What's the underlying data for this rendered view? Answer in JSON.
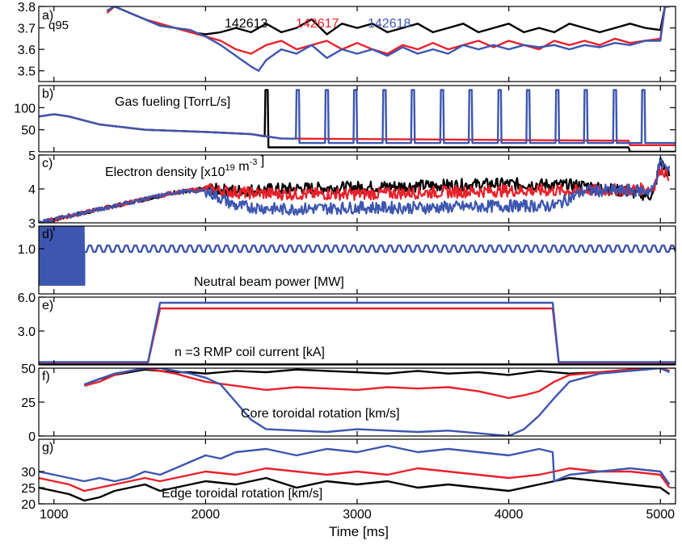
{
  "xlabel": "Time [ms]",
  "xticks": [
    1000,
    2000,
    3000,
    4000,
    5000
  ],
  "xlim": [
    900,
    5100
  ],
  "colors": {
    "142613": "#000000",
    "142617": "#e8212b",
    "142618": "#3d56b0"
  },
  "shots": [
    "142613",
    "142617",
    "142618"
  ],
  "chart_data": [
    {
      "type": "line",
      "panel": "a)",
      "label": "q95",
      "ylim": [
        3.45,
        3.8
      ],
      "yticks": [
        "3.5",
        "3.6",
        "3.7",
        "3.8"
      ],
      "legend": true,
      "series": [
        {
          "name": "142613",
          "x": [
            1350,
            1400,
            1500,
            1600,
            1700,
            1800,
            1900,
            2000,
            2100,
            2200,
            2300,
            2400,
            2500,
            2600,
            2700,
            2800,
            2900,
            3000,
            3100,
            3200,
            3300,
            3400,
            3500,
            3600,
            3700,
            3800,
            3900,
            4000,
            4100,
            4200,
            4300,
            4400,
            4500,
            4600,
            4700,
            4800,
            4900,
            5000,
            5030,
            5060
          ],
          "y": [
            3.78,
            3.8,
            3.77,
            3.74,
            3.71,
            3.7,
            3.68,
            3.67,
            3.68,
            3.7,
            3.68,
            3.72,
            3.68,
            3.7,
            3.74,
            3.67,
            3.72,
            3.7,
            3.72,
            3.68,
            3.7,
            3.72,
            3.68,
            3.7,
            3.72,
            3.68,
            3.7,
            3.72,
            3.68,
            3.7,
            3.68,
            3.72,
            3.7,
            3.68,
            3.7,
            3.72,
            3.7,
            3.69,
            3.8,
            3.8
          ]
        },
        {
          "name": "142617",
          "x": [
            1350,
            1400,
            1500,
            1600,
            1700,
            1800,
            1900,
            2000,
            2100,
            2200,
            2300,
            2400,
            2500,
            2600,
            2700,
            2800,
            2900,
            3000,
            3100,
            3200,
            3300,
            3400,
            3500,
            3600,
            3700,
            3800,
            3900,
            4000,
            4100,
            4200,
            4300,
            4400,
            4500,
            4600,
            4700,
            4800,
            4900,
            5000,
            5030,
            5060
          ],
          "y": [
            3.77,
            3.8,
            3.77,
            3.74,
            3.72,
            3.7,
            3.68,
            3.66,
            3.64,
            3.6,
            3.58,
            3.62,
            3.64,
            3.6,
            3.62,
            3.64,
            3.6,
            3.63,
            3.6,
            3.58,
            3.62,
            3.6,
            3.63,
            3.6,
            3.62,
            3.64,
            3.61,
            3.64,
            3.62,
            3.6,
            3.64,
            3.62,
            3.64,
            3.62,
            3.65,
            3.63,
            3.64,
            3.65,
            3.8,
            3.8
          ]
        },
        {
          "name": "142618",
          "x": [
            1350,
            1400,
            1500,
            1600,
            1700,
            1800,
            1900,
            2000,
            2100,
            2200,
            2300,
            2350,
            2400,
            2500,
            2600,
            2700,
            2800,
            2900,
            3000,
            3100,
            3200,
            3300,
            3400,
            3500,
            3600,
            3700,
            3800,
            3900,
            4000,
            4100,
            4200,
            4300,
            4400,
            4500,
            4600,
            4700,
            4800,
            4900,
            5000,
            5030,
            5060
          ],
          "y": [
            3.78,
            3.8,
            3.77,
            3.74,
            3.71,
            3.7,
            3.69,
            3.66,
            3.62,
            3.57,
            3.52,
            3.5,
            3.55,
            3.6,
            3.58,
            3.62,
            3.56,
            3.6,
            3.58,
            3.6,
            3.57,
            3.61,
            3.58,
            3.6,
            3.58,
            3.62,
            3.6,
            3.62,
            3.6,
            3.62,
            3.61,
            3.62,
            3.6,
            3.62,
            3.61,
            3.63,
            3.62,
            3.64,
            3.64,
            3.8,
            3.8
          ]
        }
      ]
    },
    {
      "type": "line",
      "panel": "b)",
      "label": "Gas fueling [TorrL/s]",
      "ylim": [
        0,
        150
      ],
      "yticks": [
        "50",
        "100"
      ],
      "series": [
        {
          "name": "142613",
          "x": [
            900,
            1000,
            1100,
            1300,
            1600,
            2000,
            2300,
            2390,
            2395,
            2410,
            2415,
            2600,
            4700,
            4790,
            4800,
            5100
          ],
          "y": [
            80,
            85,
            80,
            62,
            50,
            45,
            40,
            35,
            140,
            140,
            10,
            10,
            10,
            10,
            0,
            0
          ]
        },
        {
          "name": "142617",
          "x": [
            900,
            1000,
            1100,
            1300,
            1600,
            2000,
            2300,
            2500,
            4790,
            4800,
            5100
          ],
          "y": [
            80,
            85,
            80,
            62,
            50,
            45,
            40,
            30,
            25,
            15,
            15
          ]
        },
        {
          "name": "142618",
          "x": [
            900,
            1000,
            1100,
            1300,
            1600,
            2000,
            2300,
            2500,
            5100
          ],
          "y": [
            80,
            85,
            80,
            62,
            50,
            45,
            40,
            30,
            25
          ],
          "pulses": {
            "start": 2600,
            "period": 190,
            "count": 13,
            "height": 140,
            "base": 20
          }
        }
      ]
    },
    {
      "type": "line",
      "panel": "c)",
      "label": "Electron density [x10^19 m^-3 ]",
      "ylim": [
        3,
        5
      ],
      "yticks": [
        "3",
        "4",
        "5"
      ],
      "series": [
        {
          "name": "142613",
          "x": [
            900,
            1200,
            1500,
            1800,
            2000,
            2200,
            2500,
            3000,
            3500,
            4000,
            4500,
            4950,
            5000,
            5060
          ],
          "y": [
            3.0,
            3.3,
            3.6,
            3.9,
            4.0,
            3.95,
            4.0,
            4.05,
            4.1,
            4.15,
            4.1,
            3.8,
            4.8,
            4.4
          ]
        },
        {
          "name": "142617",
          "x": [
            900,
            1200,
            1500,
            1800,
            2000,
            2200,
            2500,
            3000,
            3500,
            4000,
            4500,
            4950,
            5000,
            5060
          ],
          "y": [
            3.0,
            3.3,
            3.6,
            3.9,
            4.0,
            3.9,
            3.85,
            3.85,
            3.9,
            3.95,
            3.95,
            4.0,
            4.6,
            4.4
          ]
        },
        {
          "name": "142618",
          "x": [
            900,
            1200,
            1500,
            1800,
            2000,
            2200,
            2500,
            3000,
            3500,
            4000,
            4300,
            4500,
            4950,
            5000,
            5060
          ],
          "y": [
            3.0,
            3.3,
            3.6,
            3.9,
            3.95,
            3.5,
            3.4,
            3.45,
            3.45,
            3.5,
            3.5,
            3.95,
            3.95,
            4.8,
            4.5
          ]
        }
      ]
    },
    {
      "type": "line",
      "panel": "d)",
      "label": "Neutral beam power [MW]",
      "ylim": [
        0,
        1.5
      ],
      "yticks": [
        "1.0"
      ],
      "series": [
        {
          "name": "142618",
          "x": [
            900,
            1200,
            5100
          ],
          "y": [
            1.0,
            1.0,
            1.0
          ],
          "burst": {
            "start": 900,
            "end": 1200,
            "low": 0.2,
            "high": 1.5
          },
          "osc": {
            "start": 1200,
            "end": 5100,
            "low": 0.93,
            "high": 1.07,
            "period": 60
          }
        }
      ]
    },
    {
      "type": "line",
      "panel": "e)",
      "label": "n =3 RMP coil current [kA]",
      "ylim": [
        0,
        6
      ],
      "yticks": [
        "3.0",
        "6.0"
      ],
      "series": [
        {
          "name": "142613",
          "x": [
            900,
            5100
          ],
          "y": [
            0.05,
            0.05
          ]
        },
        {
          "name": "142617",
          "x": [
            900,
            1620,
            1700,
            4290,
            4330,
            5100
          ],
          "y": [
            0.2,
            0.2,
            5.0,
            5.0,
            0.2,
            0.2
          ]
        },
        {
          "name": "142618",
          "x": [
            900,
            1620,
            1700,
            4290,
            4330,
            5100
          ],
          "y": [
            0.25,
            0.25,
            5.5,
            5.5,
            0.25,
            0.25
          ]
        }
      ]
    },
    {
      "type": "line",
      "panel": "f)",
      "label": "Core toroidal rotation [km/s]",
      "ylim": [
        0,
        50
      ],
      "yticks": [
        "0",
        "25",
        "50"
      ],
      "series": [
        {
          "name": "142613",
          "x": [
            1200,
            1300,
            1400,
            1500,
            1600,
            1700,
            1800,
            1900,
            2000,
            2200,
            2400,
            2600,
            2800,
            3000,
            3200,
            3400,
            3600,
            3800,
            4000,
            4200,
            4400,
            4600,
            4800,
            5000,
            5060
          ],
          "y": [
            38,
            42,
            45,
            47,
            49,
            48,
            47,
            47,
            46,
            48,
            47,
            49,
            48,
            47,
            46,
            48,
            46,
            47,
            45,
            48,
            46,
            47,
            49,
            50,
            48
          ]
        },
        {
          "name": "142617",
          "x": [
            1200,
            1300,
            1400,
            1500,
            1600,
            1700,
            1800,
            1900,
            2000,
            2200,
            2400,
            2600,
            2800,
            3000,
            3200,
            3400,
            3600,
            3800,
            4000,
            4100,
            4200,
            4300,
            4400,
            4600,
            4800,
            5000,
            5060
          ],
          "y": [
            37,
            40,
            45,
            48,
            50,
            48,
            46,
            43,
            40,
            37,
            34,
            36,
            35,
            34,
            36,
            35,
            36,
            33,
            28,
            30,
            33,
            40,
            45,
            47,
            49,
            50,
            48
          ]
        },
        {
          "name": "142618",
          "x": [
            1200,
            1300,
            1400,
            1500,
            1600,
            1700,
            1800,
            1900,
            2000,
            2100,
            2200,
            2300,
            2400,
            2600,
            2800,
            3000,
            3200,
            3400,
            3600,
            3800,
            3900,
            4000,
            4100,
            4200,
            4300,
            4400,
            4600,
            4800,
            5000,
            5060
          ],
          "y": [
            38,
            42,
            46,
            48,
            50,
            50,
            48,
            46,
            43,
            38,
            25,
            12,
            5,
            4,
            3,
            5,
            4,
            3,
            4,
            2,
            1,
            0,
            5,
            15,
            28,
            40,
            46,
            48,
            50,
            47
          ]
        }
      ]
    },
    {
      "type": "line",
      "panel": "g)",
      "label": "Edge toroidal rotation [km/s]",
      "ylim": [
        20,
        40
      ],
      "yticks": [
        "20",
        "25",
        "30"
      ],
      "series": [
        {
          "name": "142613",
          "x": [
            900,
            1000,
            1100,
            1200,
            1300,
            1400,
            1500,
            1600,
            1700,
            1800,
            1900,
            2000,
            2200,
            2400,
            2600,
            2800,
            3000,
            3200,
            3400,
            3600,
            3800,
            4000,
            4200,
            4400,
            4600,
            4800,
            5000,
            5060
          ],
          "y": [
            25,
            24,
            23,
            21,
            22,
            24,
            25,
            26,
            24,
            25,
            26,
            27,
            26,
            28,
            25,
            27,
            26,
            27,
            25,
            26,
            25,
            24,
            26,
            28,
            27,
            26,
            25,
            23
          ]
        },
        {
          "name": "142617",
          "x": [
            900,
            1000,
            1100,
            1200,
            1300,
            1400,
            1500,
            1600,
            1700,
            1800,
            1900,
            2000,
            2200,
            2400,
            2600,
            2800,
            3000,
            3200,
            3400,
            3600,
            3800,
            4000,
            4200,
            4400,
            4600,
            4800,
            5000,
            5060
          ],
          "y": [
            28,
            27,
            26,
            24,
            25,
            26,
            27,
            28,
            27,
            28,
            29,
            30,
            29,
            31,
            30,
            29,
            30,
            29,
            31,
            30,
            29,
            28,
            29,
            31,
            30,
            30,
            29,
            25
          ]
        },
        {
          "name": "142618",
          "x": [
            900,
            1000,
            1100,
            1200,
            1300,
            1400,
            1500,
            1600,
            1700,
            1800,
            1900,
            2000,
            2100,
            2200,
            2400,
            2600,
            2800,
            3000,
            3200,
            3400,
            3600,
            3800,
            4000,
            4200,
            4290,
            4300,
            4400,
            4600,
            4800,
            5000,
            5060
          ],
          "y": [
            30,
            29,
            28,
            27,
            28,
            27,
            28,
            30,
            29,
            31,
            33,
            35,
            34,
            36,
            37,
            35,
            37,
            36,
            38,
            36,
            37,
            36,
            35,
            37,
            36,
            27,
            29,
            30,
            31,
            30,
            26
          ]
        }
      ]
    }
  ]
}
